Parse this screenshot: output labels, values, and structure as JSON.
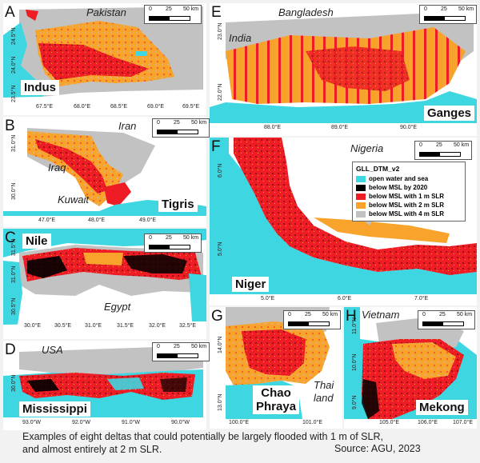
{
  "colors": {
    "water": "#3ed6e0",
    "below2020": "#000000",
    "slr1": "#ee1c24",
    "slr2": "#f7a32c",
    "slr4": "#c2c2c2",
    "land": "#ffffff"
  },
  "scale": {
    "zero": "0",
    "mid": "25",
    "end": "50 km"
  },
  "legend": {
    "title": "GLL_DTM_v2",
    "items": [
      {
        "label": "open water and sea",
        "color": "#3ed6e0"
      },
      {
        "label": "below MSL by 2020",
        "color": "#000000"
      },
      {
        "label": "below MSL with 1 m SLR",
        "color": "#ee1c24"
      },
      {
        "label": "below MSL with 2 m SLR",
        "color": "#f7a32c"
      },
      {
        "label": "below MSL with 4 m SLR",
        "color": "#c2c2c2"
      }
    ]
  },
  "panels": {
    "A": {
      "letter": "A",
      "delta": "Indus",
      "country": "Pakistan",
      "xticks": [
        "67.5°E",
        "68.0°E",
        "68.5°E",
        "69.0°E",
        "69.5°E"
      ],
      "yticks": [
        "24.5°N",
        "24.0°N",
        "23.5°N"
      ]
    },
    "B": {
      "letter": "B",
      "delta": "Tigris",
      "countries": [
        "Iran",
        "Iraq",
        "Kuwait"
      ],
      "xticks": [
        "47.0°E",
        "48.0°E",
        "49.0°E"
      ],
      "yticks": [
        "31.0°N",
        "30.0°N"
      ]
    },
    "C": {
      "letter": "C",
      "delta": "Nile",
      "country": "Egypt",
      "xticks": [
        "30.0°E",
        "30.5°E",
        "31.0°E",
        "31.5°E",
        "32.0°E",
        "32.5°E"
      ],
      "yticks": [
        "31.5°N",
        "31.0°N",
        "30.5°N"
      ]
    },
    "D": {
      "letter": "D",
      "delta": "Mississippi",
      "country": "USA",
      "xticks": [
        "93.0°W",
        "92.0°W",
        "91.0°W",
        "90.0°W"
      ],
      "yticks": [
        "30.0°N"
      ]
    },
    "E": {
      "letter": "E",
      "delta": "Ganges",
      "countries": [
        "Bangladesh",
        "India"
      ],
      "xticks": [
        "88.0°E",
        "89.0°E",
        "90.0°E"
      ],
      "yticks": [
        "23.0°N",
        "22.0°N"
      ]
    },
    "F": {
      "letter": "F",
      "delta": "Niger",
      "country": "Nigeria",
      "xticks": [
        "5.0°E",
        "6.0°E",
        "7.0°E"
      ],
      "yticks": [
        "6.0°N",
        "5.0°N"
      ]
    },
    "G": {
      "letter": "G",
      "delta_line1": "Chao",
      "delta_line2": "Phraya",
      "country_line1": "Thai",
      "country_line2": "land",
      "xticks": [
        "100.0°E",
        "101.0°E"
      ],
      "yticks": [
        "14.0°N",
        "13.0°N"
      ]
    },
    "H": {
      "letter": "H",
      "delta": "Mekong",
      "country": "Vietnam",
      "xticks": [
        "105.0°E",
        "106.0°E",
        "107.0°E"
      ],
      "yticks": [
        "11.0°N",
        "10.0°N",
        "9.0°N"
      ]
    }
  },
  "caption": {
    "line1": "Examples of eight deltas that could potentially be largely flooded with 1 m of SLR,",
    "line2": "and almost entirely at 2 m SLR.",
    "source": "Source: AGU, 2023"
  }
}
